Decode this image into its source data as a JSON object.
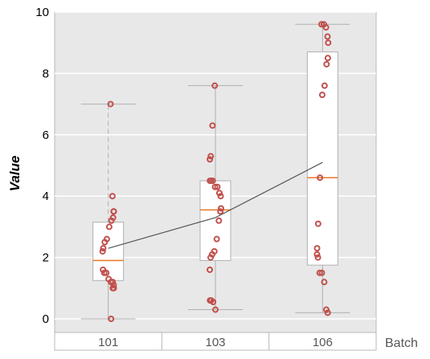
{
  "chart_data": {
    "type": "box",
    "ylabel": "Value",
    "xlabel": "Batch",
    "ylim": [
      -0.5,
      10
    ],
    "yticks": [
      "0",
      "2",
      "4",
      "6",
      "8",
      "10"
    ],
    "categories": [
      "101",
      "103",
      "106"
    ],
    "grid": true,
    "colors": {
      "panel": "#e8e8e8",
      "grid": "#ffffff",
      "box_fill": "#ffffff",
      "box_edge": "#b0b0b0",
      "median": "#e87722",
      "points": "#c0504d",
      "mean_line": "#555555",
      "whisker": "#b0b0b0"
    },
    "boxes": [
      {
        "category": "101",
        "whisker_low": 0.0,
        "q1": 1.25,
        "median": 1.9,
        "q3": 3.15,
        "whisker_high": 7.0,
        "mean": 2.3,
        "points": [
          7.0,
          4.0,
          3.5,
          3.5,
          3.3,
          3.2,
          3.0,
          2.6,
          2.5,
          2.3,
          2.2,
          1.6,
          1.5,
          1.5,
          1.3,
          1.2,
          1.2,
          1.1,
          1.0,
          1.0,
          0.0
        ]
      },
      {
        "category": "103",
        "whisker_low": 0.3,
        "q1": 1.9,
        "median": 3.55,
        "q3": 4.5,
        "whisker_high": 7.6,
        "mean": 3.3,
        "points": [
          7.6,
          6.3,
          5.3,
          5.2,
          4.5,
          4.5,
          4.5,
          4.3,
          4.3,
          4.1,
          4.0,
          3.6,
          3.5,
          3.2,
          2.6,
          2.2,
          2.1,
          2.0,
          1.6,
          0.6,
          0.6,
          0.55,
          0.3
        ]
      },
      {
        "category": "106",
        "whisker_low": 0.2,
        "q1": 1.75,
        "median": 4.6,
        "q3": 8.7,
        "whisker_high": 9.6,
        "mean": 5.1,
        "points": [
          9.6,
          9.6,
          9.5,
          9.2,
          9.0,
          8.5,
          8.3,
          7.6,
          7.3,
          4.6,
          3.1,
          2.3,
          2.1,
          2.0,
          1.5,
          1.5,
          1.2,
          0.3,
          0.2
        ]
      }
    ]
  }
}
